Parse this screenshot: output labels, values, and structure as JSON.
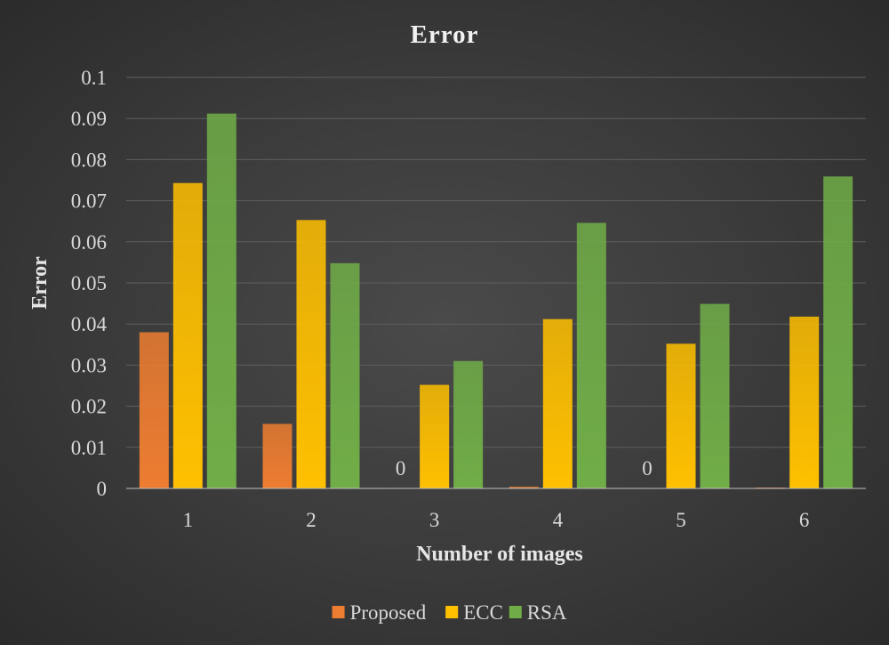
{
  "chart_data": {
    "type": "bar",
    "title": "Error",
    "xlabel": "Number of images",
    "ylabel": "Error",
    "categories": [
      "1",
      "2",
      "3",
      "4",
      "5",
      "6"
    ],
    "ylim": [
      0,
      0.1
    ],
    "yticks": [
      "0",
      "0.01",
      "0.02",
      "0.03",
      "0.04",
      "0.05",
      "0.06",
      "0.07",
      "0.08",
      "0.09",
      "0.1"
    ],
    "grid": true,
    "legend_position": "bottom",
    "series": [
      {
        "name": "Proposed",
        "color": "#ed7d31",
        "values": [
          0.038,
          0.0157,
          0,
          0.0004,
          0,
          0.0002
        ],
        "data_labels": [
          "",
          "",
          "0",
          "",
          "0",
          ""
        ]
      },
      {
        "name": "ECC",
        "color": "#ffc000",
        "values": [
          0.0743,
          0.0653,
          0.0252,
          0.0412,
          0.0352,
          0.0418
        ],
        "data_labels": [
          "",
          "",
          "",
          "",
          "",
          ""
        ]
      },
      {
        "name": "RSA",
        "color": "#70ad47",
        "values": [
          0.0912,
          0.0548,
          0.031,
          0.0646,
          0.0449,
          0.0759
        ],
        "data_labels": [
          "",
          "",
          "",
          "",
          "",
          ""
        ]
      }
    ]
  }
}
